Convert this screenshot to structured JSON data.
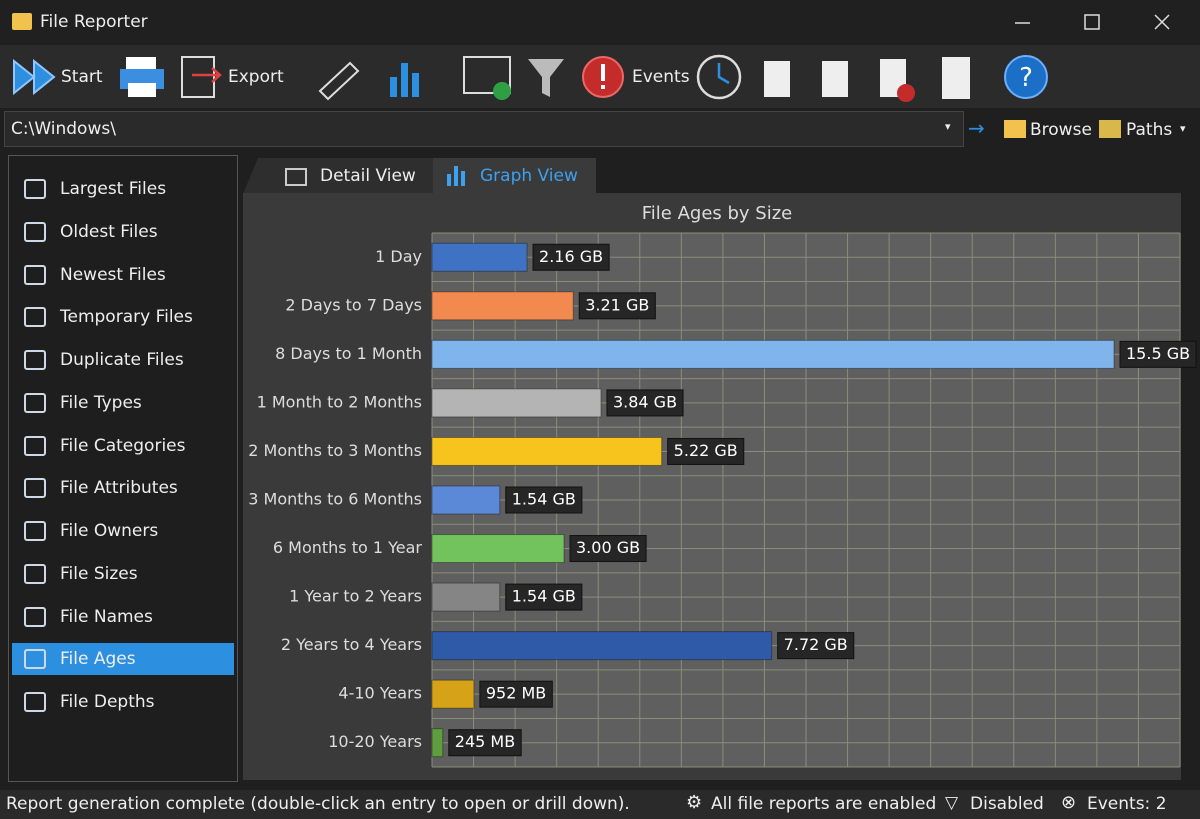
{
  "window": {
    "title": "File Reporter"
  },
  "toolbar": {
    "start": "Start",
    "export": "Export",
    "events": "Events"
  },
  "path_bar": {
    "path": "C:\\Windows\\",
    "browse": "Browse",
    "paths": "Paths"
  },
  "sidebar": {
    "items": [
      "Largest Files",
      "Oldest Files",
      "Newest Files",
      "Temporary Files",
      "Duplicate Files",
      "File Types",
      "File Categories",
      "File Attributes",
      "File Owners",
      "File Sizes",
      "File Names",
      "File Ages",
      "File Depths"
    ]
  },
  "tabs": [
    "Detail View",
    "Graph View"
  ],
  "chart_data": {
    "type": "hbar",
    "title": "File Ages by Size",
    "categories": [
      "1 Day",
      "2 Days to 7 Days",
      "8 Days to 1 Month",
      "1 Month to 2 Months",
      "2 Months to 3 Months",
      "3 Months to 6 Months",
      "6 Months to 1 Year",
      "1 Year to 2 Years",
      "2 Years to 4 Years",
      "4-10 Years",
      "10-20 Years"
    ],
    "values": [
      2.16,
      3.21,
      15.5,
      3.84,
      5.22,
      1.54,
      3.0,
      1.54,
      7.72,
      0.952,
      0.245
    ],
    "value_labels": [
      "2.16 GB",
      "3.21 GB",
      "15.5 GB",
      "3.84 GB",
      "5.22 GB",
      "1.54 GB",
      "3.00 GB",
      "1.54 GB",
      "7.72 GB",
      "952 MB",
      "245 MB"
    ],
    "colors": [
      "#3f72c2",
      "#f28a50",
      "#80b4ec",
      "#b4b4b4",
      "#f6c41c",
      "#5c88d8",
      "#72c25e",
      "#858585",
      "#2f5aa8",
      "#d6a318",
      "#5e9e3e"
    ],
    "xlim": [
      0,
      17
    ],
    "grid": true
  },
  "status_bar": {
    "message": "Report generation complete (double-click an entry to open or drill down).",
    "reports": "All file reports are enabled",
    "filter": "Disabled",
    "events": "Events: 2"
  }
}
